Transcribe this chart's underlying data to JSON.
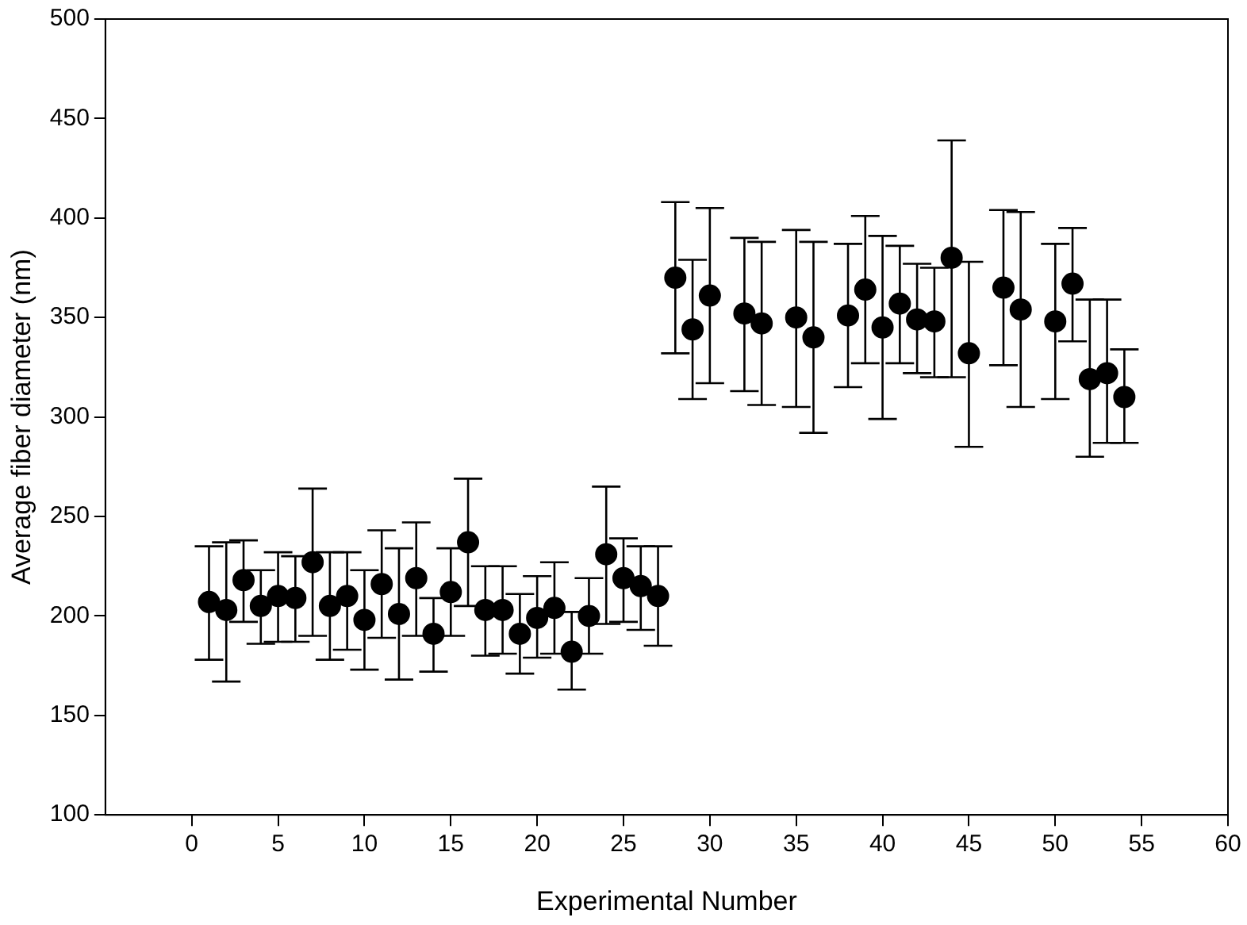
{
  "chart_data": {
    "type": "scatter",
    "xlabel": "Experimental Number",
    "ylabel": "Average fiber diameter (nm)",
    "x": [
      1,
      2,
      3,
      4,
      5,
      6,
      7,
      8,
      9,
      10,
      11,
      12,
      13,
      14,
      15,
      16,
      17,
      18,
      19,
      20,
      21,
      22,
      23,
      24,
      25,
      26,
      27,
      28,
      29,
      30,
      32,
      33,
      35,
      36,
      38,
      39,
      40,
      41,
      42,
      43,
      44,
      45,
      47,
      48,
      50,
      51,
      52,
      53,
      54
    ],
    "values": [
      207,
      203,
      218,
      205,
      210,
      209,
      227,
      205,
      210,
      198,
      216,
      201,
      219,
      191,
      212,
      237,
      203,
      203,
      191,
      199,
      204,
      182,
      200,
      231,
      219,
      215,
      210,
      370,
      344,
      361,
      352,
      347,
      350,
      340,
      351,
      364,
      345,
      357,
      349,
      348,
      380,
      332,
      365,
      354,
      348,
      367,
      319,
      322,
      310
    ],
    "errors": [
      [
        178,
        235
      ],
      [
        167,
        237
      ],
      [
        197,
        238
      ],
      [
        186,
        223
      ],
      [
        187,
        232
      ],
      [
        187,
        230
      ],
      [
        190,
        264
      ],
      [
        178,
        232
      ],
      [
        183,
        232
      ],
      [
        173,
        223
      ],
      [
        189,
        243
      ],
      [
        168,
        234
      ],
      [
        190,
        247
      ],
      [
        172,
        209
      ],
      [
        190,
        234
      ],
      [
        205,
        269
      ],
      [
        180,
        225
      ],
      [
        181,
        225
      ],
      [
        171,
        211
      ],
      [
        179,
        220
      ],
      [
        181,
        227
      ],
      [
        163,
        202
      ],
      [
        181,
        219
      ],
      [
        196,
        265
      ],
      [
        197,
        239
      ],
      [
        193,
        235
      ],
      [
        185,
        235
      ],
      [
        332,
        408
      ],
      [
        309,
        379
      ],
      [
        317,
        405
      ],
      [
        313,
        390
      ],
      [
        306,
        388
      ],
      [
        305,
        394
      ],
      [
        292,
        388
      ],
      [
        315,
        387
      ],
      [
        327,
        401
      ],
      [
        299,
        391
      ],
      [
        327,
        386
      ],
      [
        322,
        377
      ],
      [
        320,
        375
      ],
      [
        320,
        439
      ],
      [
        285,
        378
      ],
      [
        326,
        404
      ],
      [
        305,
        403
      ],
      [
        309,
        387
      ],
      [
        338,
        395
      ],
      [
        280,
        359
      ],
      [
        287,
        359
      ],
      [
        287,
        334
      ]
    ],
    "color": "#000000",
    "marker": "circle",
    "xlim": [
      -5,
      60
    ],
    "xticks": [
      0,
      5,
      10,
      15,
      20,
      25,
      30,
      35,
      40,
      45,
      50,
      55,
      60
    ],
    "ylim": [
      100,
      500
    ],
    "yticks": [
      100,
      150,
      200,
      250,
      300,
      350,
      400,
      450,
      500
    ],
    "grid": false,
    "legend": false
  }
}
